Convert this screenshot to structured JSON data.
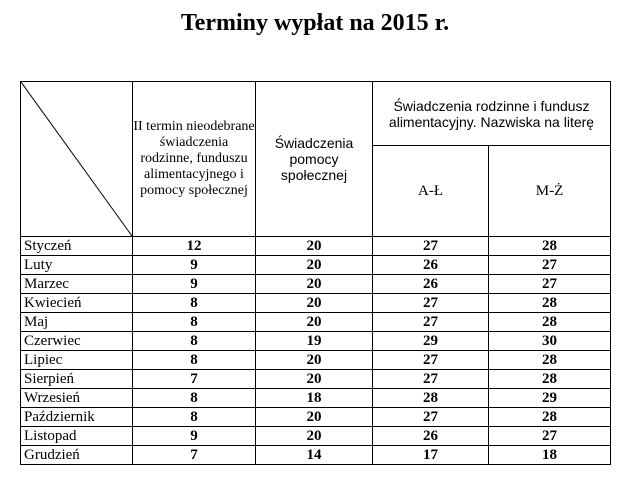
{
  "title": "Terminy wypłat na 2015 r.",
  "headers": {
    "col2": "II termin nieodebrane świadczenia rodzinne, funduszu alimentacyjnego i pomocy społecznej",
    "col3": "Świadczenia pomocy społecznej",
    "group": "Świadczenia rodzinne i fundusz alimentacyjny. Nazwiska na literę",
    "al": "A-Ł",
    "mz": "M-Ż"
  },
  "rows": [
    {
      "month": "Styczeń",
      "c2": "12",
      "c3": "20",
      "al": "27",
      "mz": "28"
    },
    {
      "month": "Luty",
      "c2": "9",
      "c3": "20",
      "al": "26",
      "mz": "27"
    },
    {
      "month": "Marzec",
      "c2": "9",
      "c3": "20",
      "al": "26",
      "mz": "27"
    },
    {
      "month": "Kwiecień",
      "c2": "8",
      "c3": "20",
      "al": "27",
      "mz": "28"
    },
    {
      "month": "Maj",
      "c2": "8",
      "c3": "20",
      "al": "27",
      "mz": "28"
    },
    {
      "month": "Czerwiec",
      "c2": "8",
      "c3": "19",
      "al": "29",
      "mz": "30"
    },
    {
      "month": "Lipiec",
      "c2": "8",
      "c3": "20",
      "al": "27",
      "mz": "28"
    },
    {
      "month": "Sierpień",
      "c2": "7",
      "c3": "20",
      "al": "27",
      "mz": "28"
    },
    {
      "month": "Wrzesień",
      "c2": "8",
      "c3": "18",
      "al": "28",
      "mz": "29"
    },
    {
      "month": "Październik",
      "c2": "8",
      "c3": "20",
      "al": "27",
      "mz": "28"
    },
    {
      "month": "Listopad",
      "c2": "9",
      "c3": "20",
      "al": "26",
      "mz": "27"
    },
    {
      "month": "Grudzień",
      "c2": "7",
      "c3": "14",
      "al": "17",
      "mz": "18"
    }
  ]
}
